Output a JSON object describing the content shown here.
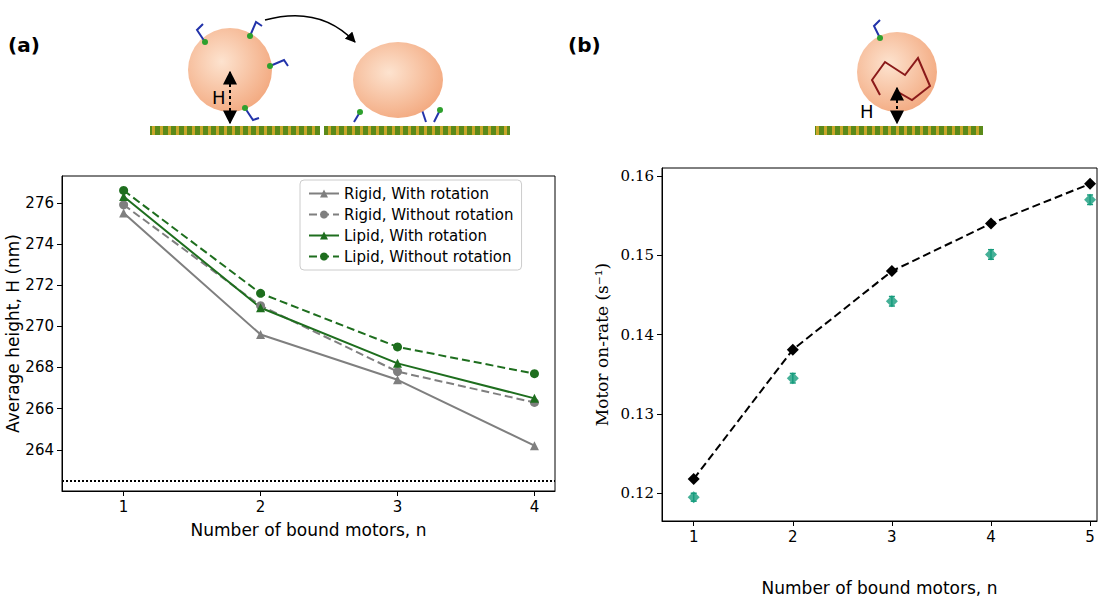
{
  "chart_data": [
    {
      "panel": "(a)",
      "type": "line",
      "schematic_label": "H",
      "x": [
        1,
        2,
        3,
        4
      ],
      "xlabel": "Number of bound motors, n",
      "ylabel": "Average height, H (nm)",
      "xlim": [
        0.55,
        4.15
      ],
      "xticks": [
        1,
        2,
        3,
        4
      ],
      "ylim": [
        262,
        277.3
      ],
      "yticks": [
        264,
        266,
        268,
        270,
        272,
        274,
        276
      ],
      "legend": "upper right",
      "reference_line": 262.5,
      "series": [
        {
          "name": "Rigid, With rotation",
          "color": "#7f7f7f",
          "marker": "triangle",
          "line_style": "solid",
          "values": [
            275.5,
            269.6,
            267.4,
            264.2
          ]
        },
        {
          "name": "Rigid, Without rotation",
          "color": "#7f7f7f",
          "marker": "circle",
          "line_style": "dashed",
          "values": [
            275.9,
            271.0,
            267.8,
            266.3
          ]
        },
        {
          "name": "Lipid, With rotation",
          "color": "#1e6e1e",
          "marker": "triangle",
          "line_style": "solid",
          "values": [
            276.3,
            270.9,
            268.2,
            266.5
          ]
        },
        {
          "name": "Lipid, Without rotation",
          "color": "#1e6e1e",
          "marker": "circle",
          "line_style": "dashed",
          "values": [
            276.6,
            271.6,
            269.0,
            267.7
          ]
        }
      ]
    },
    {
      "panel": "(b)",
      "type": "line",
      "schematic_label": "H",
      "x": [
        1,
        2,
        3,
        4,
        5
      ],
      "xlabel": "Number of bound motors, n",
      "ylabel": "Motor on-rate (s⁻¹)",
      "xlim": [
        0.68,
        5.07
      ],
      "xticks": [
        1,
        2,
        3,
        4,
        5
      ],
      "ylim": [
        0.1165,
        0.161
      ],
      "yticks": [
        0.12,
        0.13,
        0.14,
        0.15,
        0.16
      ],
      "series": [
        {
          "type": "line",
          "color": "#000000",
          "marker": "diamond",
          "line_style": "dashed",
          "values": [
            0.1218,
            0.1381,
            0.148,
            0.154,
            0.159
          ]
        },
        {
          "type": "scatter",
          "color": "#179c7d",
          "marker": "diamond",
          "values": [
            0.1195,
            0.1345,
            0.1442,
            0.1501,
            0.157
          ],
          "errors": [
            0.0005,
            0.0006,
            0.0006,
            0.0006,
            0.0006
          ]
        }
      ]
    }
  ]
}
